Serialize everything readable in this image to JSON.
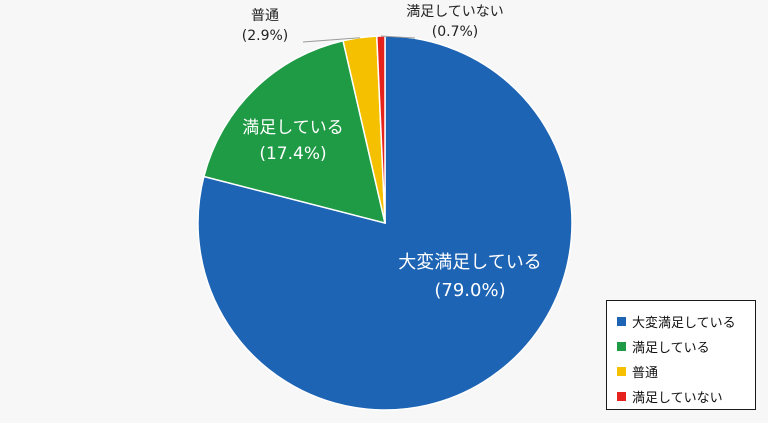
{
  "chart_data": {
    "type": "pie",
    "title": "",
    "start_angle_deg": 0,
    "direction": "clockwise",
    "legend_position": "bottom-right",
    "slices": [
      {
        "label": "大変満足している",
        "value": 79.0,
        "value_text": "(79.0%)",
        "color": "#1e64b4",
        "label_color": "#ffffff"
      },
      {
        "label": "満足している",
        "value": 17.4,
        "value_text": "(17.4%)",
        "color": "#1f9a45",
        "label_color": "#ffffff"
      },
      {
        "label": "普通",
        "value": 2.9,
        "value_text": "(2.9%)",
        "color": "#f5c000",
        "label_color": "#222222"
      },
      {
        "label": "満足していない",
        "value": 0.7,
        "value_text": "(0.7%)",
        "color": "#e5221c",
        "label_color": "#222222"
      }
    ]
  }
}
